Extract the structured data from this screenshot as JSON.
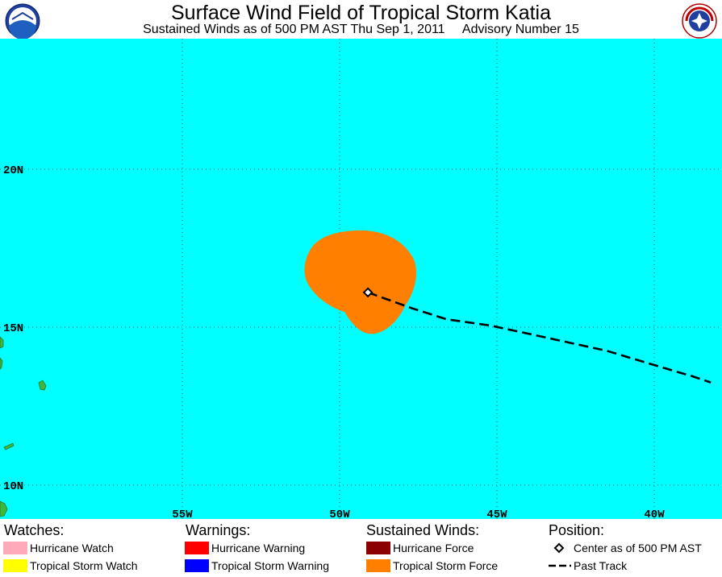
{
  "header": {
    "title": "Surface Wind Field of Tropical Storm Katia",
    "subtitle": "Sustained Winds as of 500 PM AST Thu Sep 1, 2011     Advisory Number 15",
    "logo_left": "NOAA",
    "logo_right": "NATIONAL WEATHER SERVICE"
  },
  "map": {
    "ocean_color": "#00ffff",
    "land_color": "#3db83d",
    "wind_field_color": "#ff8000",
    "lat_labels": [
      "20N",
      "15N",
      "10N"
    ],
    "lon_labels": [
      "55W",
      "50W",
      "45W",
      "40W"
    ],
    "storm_center": {
      "lat": 16.1,
      "lon": -49.1
    },
    "past_track": [
      {
        "lat": 16.1,
        "lon": -49.1
      },
      {
        "lat": 15.6,
        "lon": -47.7
      },
      {
        "lat": 15.25,
        "lon": -46.6
      },
      {
        "lat": 15.05,
        "lon": -45.2
      },
      {
        "lat": 14.75,
        "lon": -43.8
      },
      {
        "lat": 14.25,
        "lon": -41.5
      },
      {
        "lat": 13.8,
        "lon": -40.0
      },
      {
        "lat": 13.45,
        "lon": -38.8
      },
      {
        "lat": 13.25,
        "lon": -38.2
      }
    ]
  },
  "legend": {
    "watches": {
      "heading": "Watches:",
      "items": [
        {
          "label": "Hurricane Watch",
          "color": "#ffaabb"
        },
        {
          "label": "Tropical Storm Watch",
          "color": "#ffff00"
        }
      ]
    },
    "warnings": {
      "heading": "Warnings:",
      "items": [
        {
          "label": "Hurricane Warning",
          "color": "#ff0000"
        },
        {
          "label": "Tropical Storm Warning",
          "color": "#0000ff"
        }
      ]
    },
    "winds": {
      "heading": "Sustained Winds:",
      "items": [
        {
          "label": "Hurricane Force",
          "color": "#8b0000"
        },
        {
          "label": "Tropical Storm Force",
          "color": "#ff8000"
        }
      ]
    },
    "position": {
      "heading": "Position:",
      "items": [
        {
          "label": "Center as of 500 PM AST",
          "icon": "diamond-icon"
        },
        {
          "label": "Past Track",
          "icon": "dashed-line-icon"
        }
      ]
    }
  }
}
